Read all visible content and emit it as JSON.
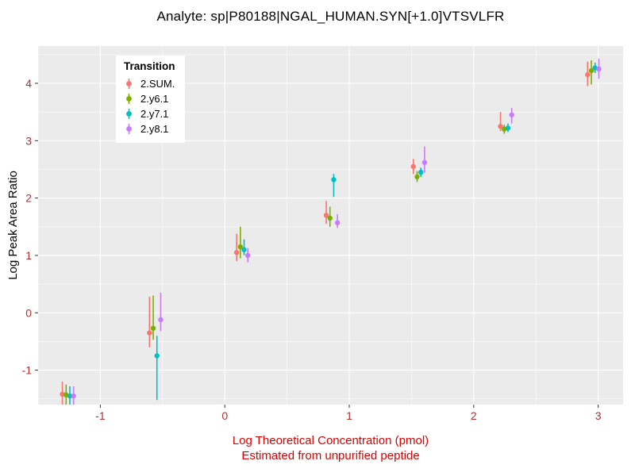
{
  "chart_data": {
    "type": "scatter",
    "title": "Analyte: sp|P80188|NGAL_HUMAN.SYN[+1.0]VTSVLFR",
    "ylabel": "Log Peak Area Ratio",
    "xlabel_line1": "Log Theoretical Concentration (pmol)",
    "xlabel_line2": "Estimated from unpurified peptide",
    "legend_title": "Transition",
    "legend_position": "top-left-inside",
    "grid": true,
    "xlim": [
      -1.5,
      3.2
    ],
    "ylim": [
      -1.6,
      4.65
    ],
    "x_ticks": [
      -1,
      0,
      1,
      2,
      3
    ],
    "y_ticks": [
      -1,
      0,
      1,
      2,
      3,
      4
    ],
    "colors": {
      "panel_bg": "#EBEBEB",
      "grid_major": "#FFFFFF",
      "grid_minor": "#FFFFFF",
      "tick_mark": "#333333",
      "tick_label": "#B23030",
      "xlabel": "#DD0000"
    },
    "x_base": [
      -1.26,
      -0.56,
      0.14,
      0.86,
      1.56,
      2.26,
      2.96
    ],
    "series": [
      {
        "name": "2.SUM.",
        "color": "#F8766D",
        "x_offset": -0.045,
        "y": [
          -1.42,
          -0.35,
          1.05,
          1.7,
          2.55,
          3.25,
          4.15
        ],
        "lo": [
          -1.6,
          -0.6,
          0.9,
          1.55,
          2.42,
          3.17,
          3.95
        ],
        "hi": [
          -1.2,
          0.28,
          1.38,
          1.95,
          2.68,
          3.5,
          4.38
        ]
      },
      {
        "name": "2.y6.1",
        "color": "#7CAE00",
        "x_offset": -0.015,
        "y": [
          -1.43,
          -0.27,
          1.15,
          1.65,
          2.37,
          3.2,
          4.22
        ],
        "lo": [
          -1.6,
          -0.47,
          0.95,
          1.5,
          2.28,
          3.12,
          3.98
        ],
        "hi": [
          -1.25,
          0.3,
          1.5,
          1.85,
          2.47,
          3.28,
          4.4
        ]
      },
      {
        "name": "2.y7.1",
        "color": "#00BFC4",
        "x_offset": 0.015,
        "y": [
          -1.45,
          -0.75,
          1.1,
          2.32,
          2.45,
          3.22,
          4.27
        ],
        "lo": [
          -1.62,
          -1.52,
          1.0,
          2.02,
          2.37,
          3.15,
          4.18
        ],
        "hi": [
          -1.28,
          -0.4,
          1.28,
          2.42,
          2.53,
          3.3,
          4.36
        ]
      },
      {
        "name": "2.y8.1",
        "color": "#C77CFF",
        "x_offset": 0.045,
        "y": [
          -1.45,
          -0.12,
          1.0,
          1.57,
          2.62,
          3.45,
          4.25
        ],
        "lo": [
          -1.62,
          -0.32,
          0.88,
          1.48,
          2.44,
          3.3,
          4.08
        ],
        "hi": [
          -1.28,
          0.35,
          1.13,
          1.72,
          2.9,
          3.57,
          4.43
        ]
      }
    ]
  }
}
